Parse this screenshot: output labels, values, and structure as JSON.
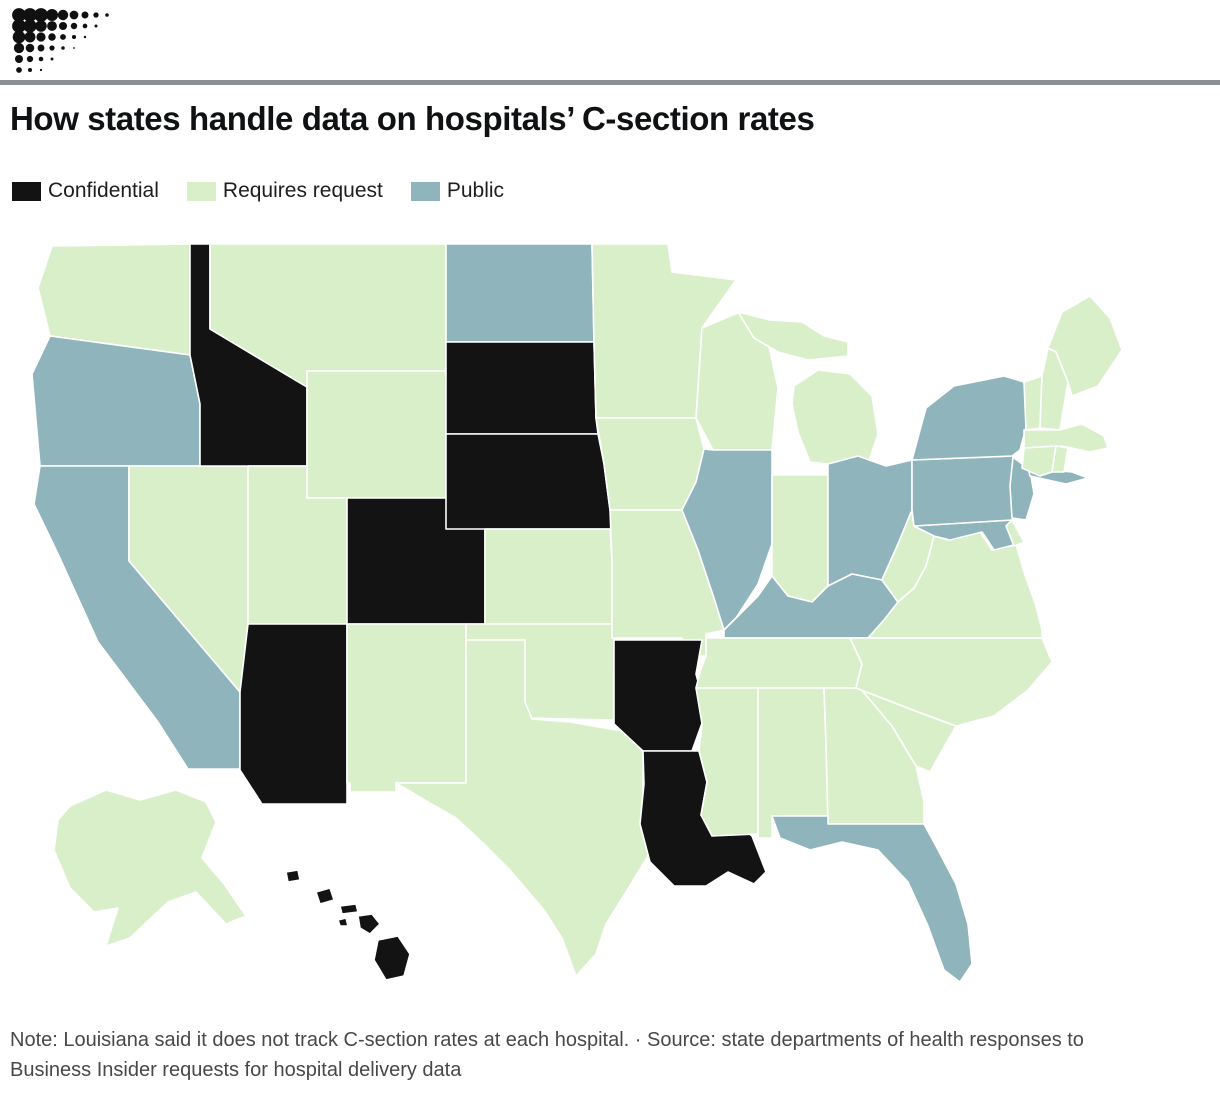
{
  "header": {
    "title": "How states handle data on hospitals’ C-section rates"
  },
  "legend": {
    "items": [
      {
        "label": "Confidential",
        "color": "#131313"
      },
      {
        "label": "Requires request",
        "color": "#d9efca"
      },
      {
        "label": "Public",
        "color": "#8fb4bc"
      }
    ]
  },
  "footer": {
    "note": "Note: Louisiana said it does not track C-section rates at each hospital. · Source: state departments of health responses to Business Insider requests for hospital delivery data"
  },
  "chart_data": {
    "type": "choropleth",
    "title": "How states handle data on hospitals’ C-section rates",
    "categories": [
      "Confidential",
      "Requires request",
      "Public"
    ],
    "colors": {
      "Confidential": "#131313",
      "Requires request": "#d9efca",
      "Public": "#8fb4bc"
    },
    "states": {
      "AL": "Requires request",
      "AK": "Requires request",
      "AZ": "Confidential",
      "AR": "Confidential",
      "CA": "Public",
      "CO": "Confidential",
      "CT": "Requires request",
      "DE": "Requires request",
      "FL": "Public",
      "GA": "Requires request",
      "HI": "Confidential",
      "ID": "Confidential",
      "IL": "Public",
      "IN": "Requires request",
      "IA": "Requires request",
      "KS": "Requires request",
      "KY": "Public",
      "LA": "Confidential",
      "ME": "Requires request",
      "MD": "Public",
      "MA": "Requires request",
      "MI": "Requires request",
      "MN": "Requires request",
      "MS": "Requires request",
      "MO": "Requires request",
      "MT": "Requires request",
      "NE": "Confidential",
      "NV": "Requires request",
      "NH": "Requires request",
      "NJ": "Public",
      "NM": "Requires request",
      "NY": "Public",
      "NC": "Requires request",
      "ND": "Public",
      "OH": "Public",
      "OK": "Requires request",
      "OR": "Public",
      "PA": "Public",
      "RI": "Requires request",
      "SC": "Requires request",
      "SD": "Confidential",
      "TN": "Requires request",
      "TX": "Requires request",
      "UT": "Requires request",
      "VT": "Requires request",
      "VA": "Requires request",
      "WA": "Requires request",
      "WV": "Requires request",
      "WI": "Requires request",
      "WY": "Requires request"
    }
  }
}
